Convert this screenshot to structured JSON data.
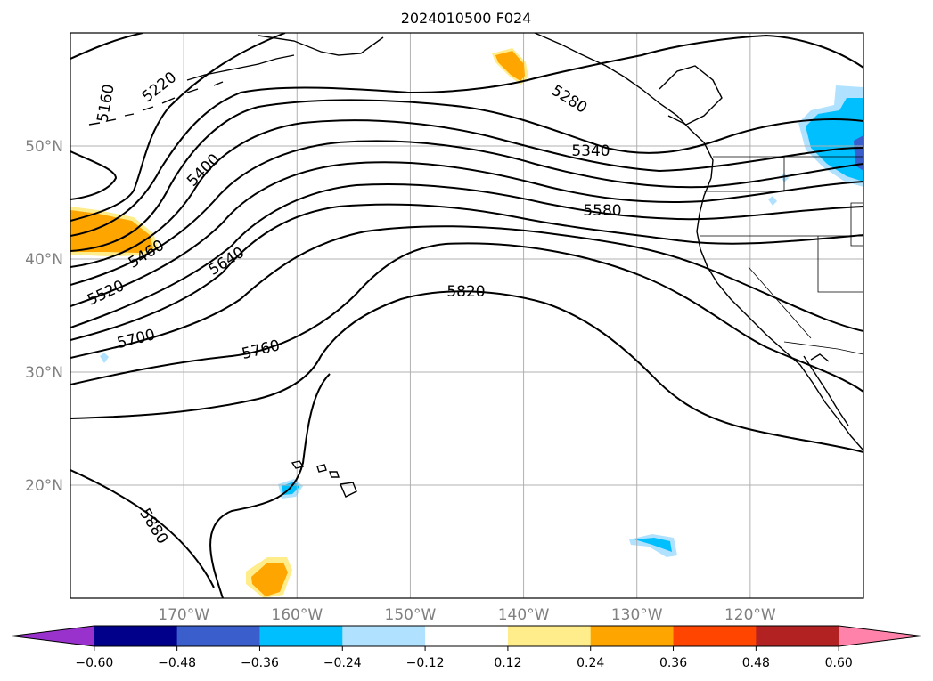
{
  "title": "2024010500 F024",
  "map": {
    "lat_range": [
      10,
      60
    ],
    "lon_range": [
      -180,
      -110
    ],
    "lat_labels": [
      {
        "value": 50,
        "text": "50°N"
      },
      {
        "value": 40,
        "text": "40°N"
      },
      {
        "value": 30,
        "text": "30°N"
      },
      {
        "value": 20,
        "text": "20°N"
      }
    ],
    "lon_labels": [
      {
        "value": -170,
        "text": "170°W"
      },
      {
        "value": -160,
        "text": "160°W"
      },
      {
        "value": -150,
        "text": "150°W"
      },
      {
        "value": -140,
        "text": "140°W"
      },
      {
        "value": -130,
        "text": "130°W"
      },
      {
        "value": -120,
        "text": "120°W"
      }
    ],
    "gridlines": true,
    "contour_labels": [
      "5160",
      "5220",
      "5280",
      "5340",
      "5400",
      "5460",
      "5520",
      "5580",
      "5640",
      "5700",
      "5760",
      "5820",
      "5880"
    ]
  },
  "colorbar": {
    "ticks": [
      "−0.60",
      "−0.48",
      "−0.36",
      "−0.24",
      "−0.12",
      "0.12",
      "0.24",
      "0.36",
      "0.48",
      "0.60"
    ],
    "colors": [
      "#9932cc",
      "#00008b",
      "#3a5fcd",
      "#00bfff",
      "#b0e2ff",
      "#ffffff",
      "#ffec8b",
      "#ffa500",
      "#ff4500",
      "#b22222",
      "#ff82ab"
    ]
  }
}
